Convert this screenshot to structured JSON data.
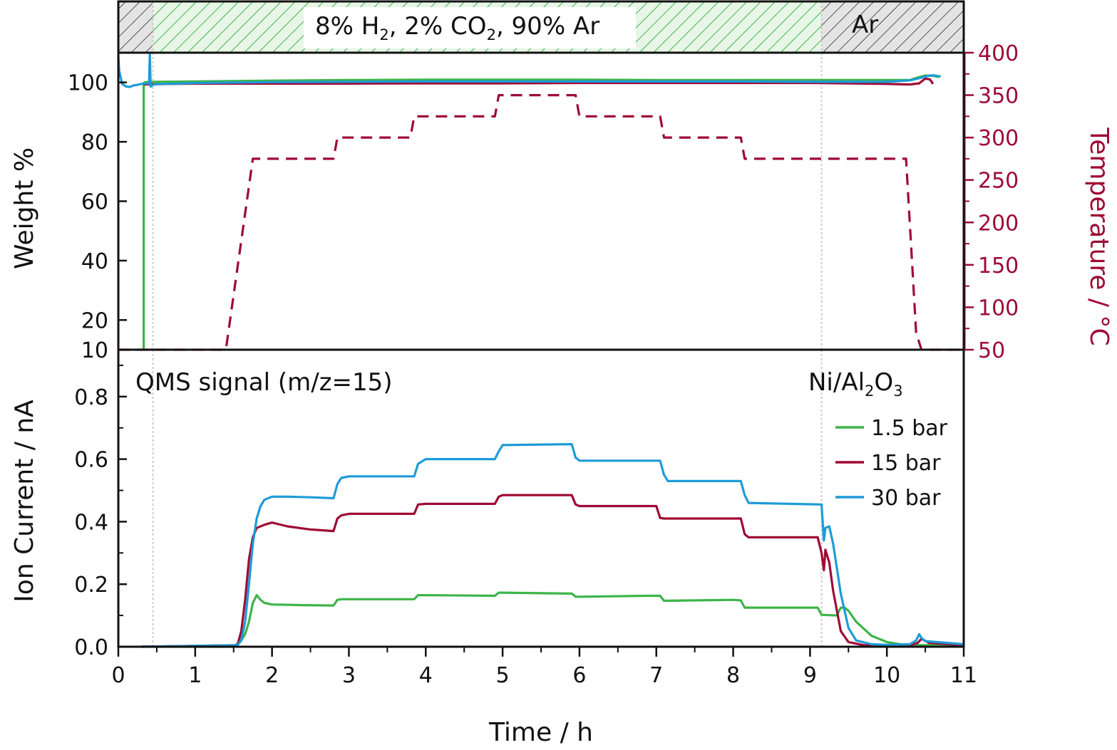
{
  "colors": {
    "green": "#3db54a",
    "red": "#9e0a35",
    "blue": "#1e9bd7",
    "axis": "#111111",
    "hatch_green_bg": "#e8f6e8",
    "hatch_gray_bg": "#e4e4e4",
    "gridline": "#cccccc"
  },
  "gas_band": {
    "segments": [
      {
        "x_range": [
          0,
          0.45
        ],
        "fill": "gray-hatch"
      },
      {
        "x_range": [
          0.45,
          9.15
        ],
        "fill": "green-hatch"
      },
      {
        "x_range": [
          9.15,
          11
        ],
        "fill": "gray-hatch"
      }
    ],
    "main_label": {
      "parts": [
        {
          "text": "8% H",
          "sub": false
        },
        {
          "text": "2",
          "sub": true
        },
        {
          "text": ", 2% CO",
          "sub": false
        },
        {
          "text": "2",
          "sub": true
        },
        {
          "text": ", 90% Ar",
          "sub": false
        }
      ]
    },
    "ar_label": "Ar"
  },
  "chart_data": [
    {
      "id": "top",
      "type": "line",
      "xlim": [
        0,
        11
      ],
      "ylim": [
        10,
        110
      ],
      "ylabel": "Weight %",
      "yticks": [
        10,
        20,
        40,
        60,
        80,
        100
      ],
      "ytick_labels": [
        "10",
        "20",
        "40",
        "60",
        "80",
        "100"
      ],
      "y2lim": [
        50,
        400
      ],
      "y2label": "Temperature / °C",
      "y2ticks": [
        50,
        100,
        150,
        200,
        250,
        300,
        350,
        400
      ],
      "y2tick_labels": [
        "50",
        "100",
        "150",
        "200",
        "250",
        "300",
        "350",
        "400"
      ],
      "vlines": [
        0.45,
        9.15
      ],
      "series": [
        {
          "color_key": "green",
          "style": "solid",
          "axis": "left",
          "x": [
            0.33,
            0.33,
            0.35,
            0.5,
            1,
            2,
            3,
            4,
            5,
            6,
            7,
            8,
            9,
            10,
            10.3,
            10.42,
            10.5,
            10.6,
            10.68
          ],
          "y": [
            10,
            99.8,
            100.1,
            100.2,
            100.3,
            100.6,
            100.8,
            100.9,
            100.9,
            100.9,
            100.8,
            100.8,
            100.8,
            100.8,
            100.8,
            101.8,
            102.3,
            102.2,
            101.8
          ]
        },
        {
          "color_key": "red",
          "style": "solid",
          "axis": "left",
          "x": [
            0.33,
            0.5,
            1,
            2,
            3,
            4,
            5,
            6,
            7,
            8,
            9,
            10,
            10.3,
            10.42,
            10.5,
            10.56,
            10.6
          ],
          "y": [
            99.3,
            99.4,
            99.6,
            99.6,
            99.6,
            99.7,
            99.7,
            99.8,
            99.8,
            99.8,
            99.8,
            99.5,
            99.3,
            99.7,
            101.3,
            101,
            99.5
          ]
        },
        {
          "color_key": "blue",
          "style": "solid",
          "axis": "left",
          "x": [
            0,
            0.01,
            0.05,
            0.1,
            0.15,
            0.2,
            0.25,
            0.3,
            0.35,
            0.4,
            0.41,
            0.42,
            0.43,
            0.45,
            0.5,
            0.8,
            1,
            2,
            3,
            4,
            5,
            6,
            7,
            8,
            9,
            10,
            10.3,
            10.4,
            10.5,
            10.55,
            10.6,
            10.65,
            10.7
          ],
          "y": [
            109,
            104,
            99.5,
            98.6,
            98.5,
            99,
            99.2,
            99.5,
            99.6,
            99.7,
            109.5,
            98.6,
            98.7,
            99.2,
            99.4,
            99.6,
            99.8,
            100.1,
            100.2,
            100.3,
            100.3,
            100.3,
            100.3,
            100.3,
            100.2,
            100.2,
            100.7,
            101.3,
            102,
            102.3,
            102.4,
            102.2,
            102
          ]
        },
        {
          "color_key": "red",
          "style": "dashed",
          "axis": "right",
          "x": [
            0,
            1.4,
            1.75,
            2.8,
            2.85,
            3.8,
            3.85,
            4.9,
            4.95,
            5.95,
            6.0,
            7.05,
            7.1,
            8.1,
            8.15,
            10.25,
            10.38,
            10.45,
            11
          ],
          "y": [
            50,
            50,
            275,
            275,
            300,
            300,
            325,
            325,
            350,
            350,
            325,
            325,
            300,
            300,
            275,
            275,
            70,
            50,
            50
          ]
        }
      ]
    },
    {
      "id": "bottom",
      "type": "line",
      "xlim": [
        0,
        11
      ],
      "ylim": [
        0,
        0.95
      ],
      "xlabel": "Time / h",
      "ylabel": "Ion Current / nA",
      "xticks": [
        0,
        1,
        2,
        3,
        4,
        5,
        6,
        7,
        8,
        9,
        10,
        11
      ],
      "xtick_labels": [
        "0",
        "1",
        "2",
        "3",
        "4",
        "5",
        "6",
        "7",
        "8",
        "9",
        "10",
        "11"
      ],
      "yticks": [
        0,
        0.2,
        0.4,
        0.6,
        0.8
      ],
      "ytick_labels": [
        "0.0",
        "0.2",
        "0.4",
        "0.6",
        "0.8"
      ],
      "vlines": [
        0.45,
        9.15
      ],
      "annotation_left": "QMS signal (m/z=15)",
      "annotation_right": {
        "parts": [
          {
            "text": "Ni/Al",
            "sub": false
          },
          {
            "text": "2",
            "sub": true
          },
          {
            "text": "O",
            "sub": false
          },
          {
            "text": "3",
            "sub": true
          }
        ]
      },
      "legend": {
        "position": "top-right"
      },
      "series": [
        {
          "name": "1.5 bar",
          "color_key": "green",
          "x": [
            0.3,
            1.5,
            1.55,
            1.6,
            1.65,
            1.7,
            1.75,
            1.8,
            1.85,
            1.9,
            2.0,
            2.4,
            2.8,
            2.85,
            2.9,
            3.5,
            3.85,
            3.9,
            4.0,
            4.9,
            4.95,
            5.0,
            5.9,
            5.95,
            6.0,
            6.9,
            7.05,
            7.1,
            8.0,
            8.1,
            8.15,
            9.1,
            9.15,
            9.35,
            9.4,
            9.45,
            9.5,
            9.6,
            9.8,
            10.0,
            10.2,
            10.4,
            10.5,
            11.0
          ],
          "y": [
            0.0,
            0.0,
            0.01,
            0.02,
            0.04,
            0.08,
            0.14,
            0.165,
            0.15,
            0.14,
            0.135,
            0.133,
            0.132,
            0.15,
            0.152,
            0.152,
            0.152,
            0.165,
            0.165,
            0.163,
            0.173,
            0.173,
            0.17,
            0.16,
            0.16,
            0.163,
            0.163,
            0.147,
            0.15,
            0.148,
            0.125,
            0.125,
            0.102,
            0.1,
            0.125,
            0.125,
            0.115,
            0.08,
            0.035,
            0.015,
            0.007,
            0.005,
            0.005,
            0.005
          ]
        },
        {
          "name": "15 bar",
          "color_key": "red",
          "x": [
            0.3,
            1.55,
            1.6,
            1.65,
            1.7,
            1.75,
            1.8,
            1.9,
            2.0,
            2.2,
            2.5,
            2.8,
            2.85,
            2.9,
            3.0,
            3.85,
            3.9,
            4.0,
            4.9,
            4.95,
            5.0,
            5.9,
            5.95,
            6.0,
            7.0,
            7.05,
            7.1,
            8.1,
            8.15,
            8.2,
            9.1,
            9.15,
            9.18,
            9.2,
            9.25,
            9.3,
            9.4,
            9.5,
            9.7,
            10.0,
            10.3,
            10.4,
            10.45,
            10.55,
            11.0
          ],
          "y": [
            0.0,
            0.005,
            0.05,
            0.15,
            0.28,
            0.35,
            0.38,
            0.39,
            0.397,
            0.385,
            0.375,
            0.37,
            0.41,
            0.42,
            0.425,
            0.425,
            0.455,
            0.457,
            0.457,
            0.48,
            0.485,
            0.485,
            0.455,
            0.45,
            0.45,
            0.412,
            0.41,
            0.41,
            0.36,
            0.35,
            0.35,
            0.3,
            0.245,
            0.31,
            0.27,
            0.18,
            0.05,
            0.015,
            0.005,
            0.005,
            0.005,
            0.012,
            0.025,
            0.012,
            0.005
          ]
        },
        {
          "name": "30 bar",
          "color_key": "blue",
          "x": [
            0.3,
            1.55,
            1.6,
            1.65,
            1.7,
            1.75,
            1.8,
            1.85,
            1.9,
            2.0,
            2.2,
            2.5,
            2.8,
            2.85,
            2.9,
            3.0,
            3.5,
            3.85,
            3.9,
            4.0,
            4.9,
            4.95,
            5.0,
            5.9,
            5.95,
            6.0,
            7.05,
            7.1,
            7.15,
            8.1,
            8.15,
            8.2,
            9.15,
            9.18,
            9.2,
            9.25,
            9.3,
            9.35,
            9.4,
            9.5,
            9.6,
            9.8,
            10.0,
            10.3,
            10.38,
            10.42,
            10.45,
            10.5,
            11.0
          ],
          "y": [
            0.0,
            0.005,
            0.02,
            0.08,
            0.2,
            0.33,
            0.41,
            0.45,
            0.47,
            0.48,
            0.48,
            0.478,
            0.475,
            0.52,
            0.54,
            0.545,
            0.545,
            0.545,
            0.585,
            0.6,
            0.6,
            0.625,
            0.645,
            0.648,
            0.605,
            0.595,
            0.595,
            0.55,
            0.53,
            0.53,
            0.485,
            0.46,
            0.455,
            0.34,
            0.38,
            0.385,
            0.33,
            0.25,
            0.17,
            0.06,
            0.02,
            0.008,
            0.006,
            0.008,
            0.02,
            0.04,
            0.028,
            0.018,
            0.008
          ]
        }
      ]
    }
  ]
}
